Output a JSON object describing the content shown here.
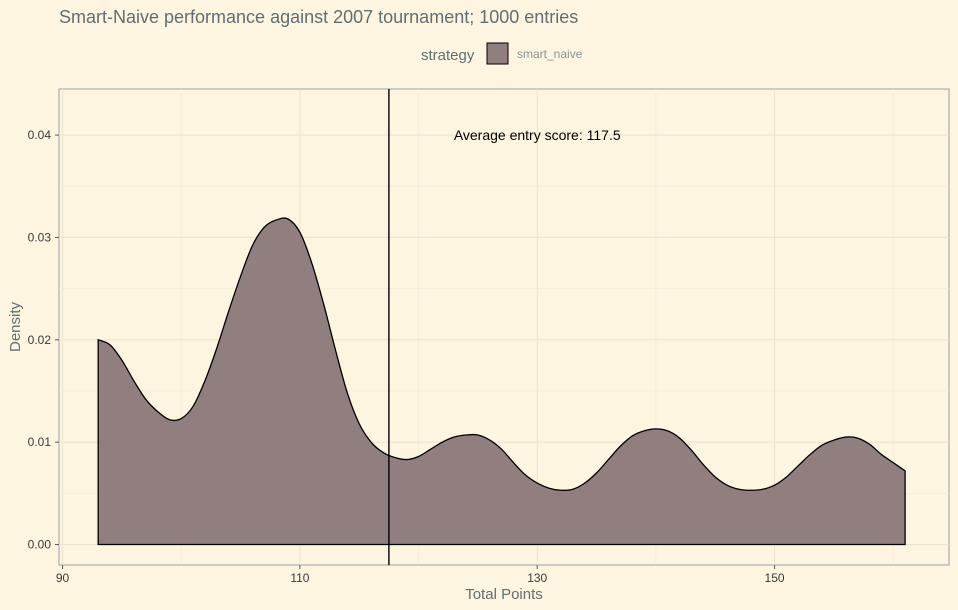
{
  "chart_data": {
    "type": "area",
    "title": "Smart-Naive performance against 2007 tournament; 1000 entries",
    "xlabel": "Total Points",
    "ylabel": "Density",
    "xlim": [
      89.7,
      164.7
    ],
    "ylim": [
      -0.002,
      0.0445
    ],
    "xticks": [
      90,
      110,
      130,
      150
    ],
    "yticks": [
      0.0,
      0.01,
      0.02,
      0.03,
      0.04
    ],
    "ytick_labels": [
      "0.00",
      "0.01",
      "0.02",
      "0.03",
      "0.04"
    ],
    "grid": true,
    "legend": {
      "title": "strategy",
      "position": "top"
    },
    "series": [
      {
        "name": "smart_naive",
        "color": "#917f7f",
        "x": [
          93,
          94,
          95,
          96,
          97,
          98,
          99,
          100,
          101,
          102,
          103,
          104,
          105,
          106,
          107,
          108,
          109,
          110,
          111,
          112,
          113,
          114,
          115,
          116,
          117,
          118,
          119,
          120,
          121,
          122,
          123,
          124,
          125,
          126,
          127,
          128,
          129,
          130,
          131,
          132,
          133,
          134,
          135,
          136,
          137,
          138,
          139,
          140,
          141,
          142,
          143,
          144,
          145,
          146,
          147,
          148,
          149,
          150,
          151,
          152,
          153,
          154,
          155,
          156,
          157,
          158,
          159,
          160,
          161
        ],
        "y": [
          0.02,
          0.0195,
          0.018,
          0.016,
          0.0142,
          0.013,
          0.0122,
          0.0123,
          0.0135,
          0.016,
          0.0192,
          0.0228,
          0.0262,
          0.0292,
          0.031,
          0.0317,
          0.0318,
          0.0305,
          0.0275,
          0.0235,
          0.019,
          0.0148,
          0.0118,
          0.01,
          0.009,
          0.0085,
          0.0083,
          0.0086,
          0.0093,
          0.01,
          0.0105,
          0.0107,
          0.0107,
          0.0102,
          0.0093,
          0.008,
          0.0068,
          0.006,
          0.0055,
          0.0053,
          0.0054,
          0.006,
          0.007,
          0.0083,
          0.0096,
          0.0106,
          0.0111,
          0.0113,
          0.0111,
          0.0104,
          0.0092,
          0.0078,
          0.0066,
          0.0058,
          0.0054,
          0.0053,
          0.0054,
          0.0058,
          0.0066,
          0.0077,
          0.0088,
          0.0097,
          0.0102,
          0.0105,
          0.0104,
          0.0098,
          0.0088,
          0.008,
          0.0072
        ]
      }
    ],
    "annotations": [
      {
        "type": "vline",
        "x": 117.5
      },
      {
        "type": "text",
        "text": "Average entry score: 117.5",
        "x": 130,
        "y": 0.04
      }
    ]
  }
}
